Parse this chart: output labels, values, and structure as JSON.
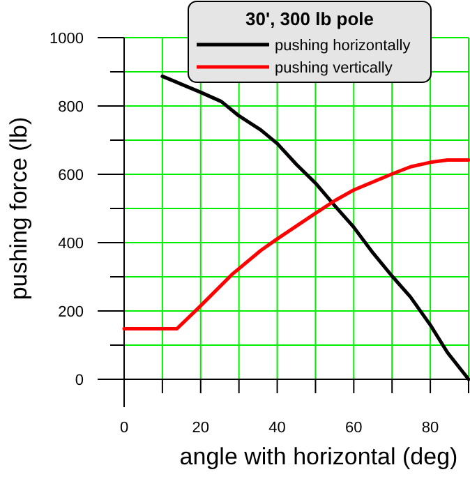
{
  "chart_data": {
    "type": "line",
    "xlabel": "angle with horizontal (deg)",
    "ylabel": "pushing force (lb)",
    "legend_title": "30', 300 lb pole",
    "legend": "top right",
    "grid": true,
    "line_style": "solid",
    "marker": "none",
    "xlim": [
      0,
      90
    ],
    "ylim": [
      0,
      1000
    ],
    "xticks": [
      0,
      {
        "value": 10,
        "label": null
      },
      20,
      {
        "value": 30,
        "label": null
      },
      40,
      {
        "value": 50,
        "label": null
      },
      60,
      {
        "value": 70,
        "label": null
      },
      80,
      {
        "value": 90,
        "label": null
      }
    ],
    "yticks": [
      0,
      {
        "value": 100,
        "label": null
      },
      200,
      {
        "value": 300,
        "label": null
      },
      400,
      {
        "value": 500,
        "label": null
      },
      600,
      {
        "value": 700,
        "label": null
      },
      800,
      {
        "value": 900,
        "label": null
      },
      1000
    ],
    "series": [
      {
        "name": "pushing horizontally",
        "color": "#000000",
        "x": [
          10,
          20,
          25.4,
          30,
          35.7,
          40,
          45,
          50,
          55.2,
          60,
          65,
          70,
          74.8,
          80,
          84.5,
          90
        ],
        "values": [
          887,
          840,
          813,
          771,
          730,
          690,
          629,
          574,
          506,
          445,
          370,
          302,
          241,
          159,
          78,
          0
        ]
      },
      {
        "name": "pushing vertically",
        "color": "#ff0000",
        "x": [
          0,
          13.8,
          19.9,
          28.4,
          35.7,
          40,
          50,
          55.2,
          60,
          70,
          74.8,
          80,
          84.5,
          90
        ],
        "values": [
          148,
          148,
          214,
          309,
          377,
          411,
          486,
          524,
          554,
          601,
          622,
          635,
          642,
          642
        ]
      }
    ]
  }
}
